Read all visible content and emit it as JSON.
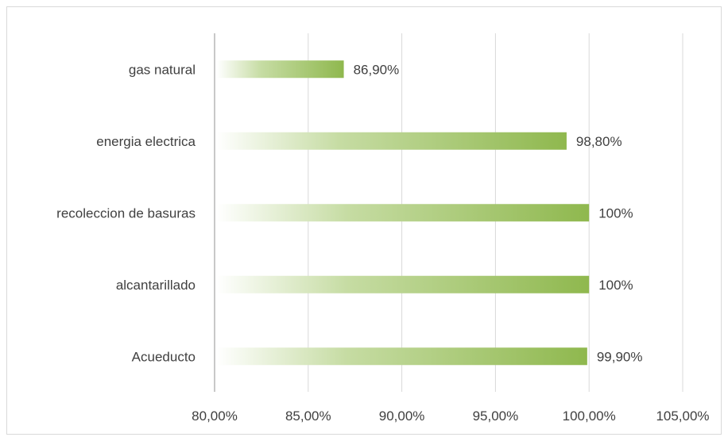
{
  "chart_data": {
    "type": "bar",
    "orientation": "horizontal",
    "categories": [
      "gas natural",
      "energia electrica",
      "recoleccion de basuras",
      "alcantarillado",
      "Acueducto"
    ],
    "values": [
      86.9,
      98.8,
      100,
      100,
      99.9
    ],
    "data_labels": [
      "86,90%",
      "98,80%",
      "100%",
      "100%",
      "99,90%"
    ],
    "xlim": [
      80,
      105
    ],
    "x_ticks": [
      80,
      85,
      90,
      95,
      100,
      105
    ],
    "x_tick_labels": [
      "80,00%",
      "85,00%",
      "90,00%",
      "95,00%",
      "100,00%",
      "105,00%"
    ],
    "grid": "vertical",
    "bar_color": "#8fb84e",
    "bar_style": "gradient-fade-left",
    "title": "",
    "xlabel": "",
    "ylabel": ""
  }
}
